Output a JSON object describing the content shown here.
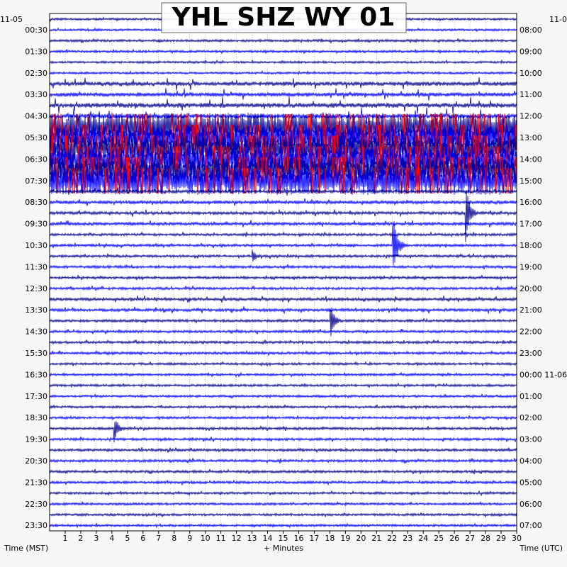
{
  "chart_data": {
    "type": "line",
    "title": "YHL SHZ WY 01",
    "left_date": "11-05",
    "right_date": "11-0",
    "right_date_change": "00:00 11-06",
    "xlabel": "+ Minutes",
    "left_axis_label": "Time (MST)",
    "right_axis_label": "Time (UTC)",
    "xlim": [
      0,
      30
    ],
    "x_ticks": [
      "1",
      "2",
      "3",
      "4",
      "5",
      "6",
      "7",
      "8",
      "9",
      "10",
      "11",
      "12",
      "13",
      "14",
      "15",
      "16",
      "17",
      "18",
      "19",
      "20",
      "21",
      "22",
      "23",
      "24",
      "25",
      "26",
      "27",
      "28",
      "29",
      "30"
    ],
    "grid": true,
    "trace_colors": [
      "#00008b",
      "#0000ff"
    ],
    "clip_color": "#ff0000",
    "rows": [
      {
        "mst": "00:30",
        "utc": "08:00",
        "amp": 0.25
      },
      {
        "mst": "01:30",
        "utc": "09:00",
        "amp": 0.3
      },
      {
        "mst": "02:30",
        "utc": "10:00",
        "amp": 0.25
      },
      {
        "mst": "03:30",
        "utc": "11:00",
        "amp": 0.7
      },
      {
        "mst": "04:30",
        "utc": "12:00",
        "amp": 0.85
      },
      {
        "mst": "05:30",
        "utc": "13:00",
        "amp": 1.0
      },
      {
        "mst": "06:30",
        "utc": "14:00",
        "amp": 1.0
      },
      {
        "mst": "07:30",
        "utc": "15:00",
        "amp": 1.0
      },
      {
        "mst": "08:30",
        "utc": "16:00",
        "amp": 0.5
      },
      {
        "mst": "09:30",
        "utc": "17:00",
        "amp": 0.45
      },
      {
        "mst": "10:30",
        "utc": "18:00",
        "amp": 0.35
      },
      {
        "mst": "11:30",
        "utc": "19:00",
        "amp": 0.35
      },
      {
        "mst": "12:30",
        "utc": "20:00",
        "amp": 0.35
      },
      {
        "mst": "13:30",
        "utc": "21:00",
        "amp": 0.45
      },
      {
        "mst": "14:30",
        "utc": "22:00",
        "amp": 0.35
      },
      {
        "mst": "15:30",
        "utc": "23:00",
        "amp": 0.35
      },
      {
        "mst": "16:30",
        "utc": "00:00 11-06",
        "amp": 0.3
      },
      {
        "mst": "17:30",
        "utc": "01:00",
        "amp": 0.3
      },
      {
        "mst": "18:30",
        "utc": "02:00",
        "amp": 0.3
      },
      {
        "mst": "19:30",
        "utc": "03:00",
        "amp": 0.35
      },
      {
        "mst": "20:30",
        "utc": "04:00",
        "amp": 0.35
      },
      {
        "mst": "21:30",
        "utc": "05:00",
        "amp": 0.35
      },
      {
        "mst": "22:30",
        "utc": "06:00",
        "amp": 0.3
      },
      {
        "mst": "23:30",
        "utc": "07:00",
        "amp": 0.3
      }
    ],
    "events": [
      {
        "trace": 18,
        "minute": 26.7,
        "amp": 45
      },
      {
        "trace": 21,
        "minute": 22.0,
        "amp": 60
      },
      {
        "trace": 38,
        "minute": 4.1,
        "amp": 25
      },
      {
        "trace": 28,
        "minute": 18.0,
        "amp": 30
      },
      {
        "trace": 22,
        "minute": 13.0,
        "amp": 12
      }
    ]
  }
}
